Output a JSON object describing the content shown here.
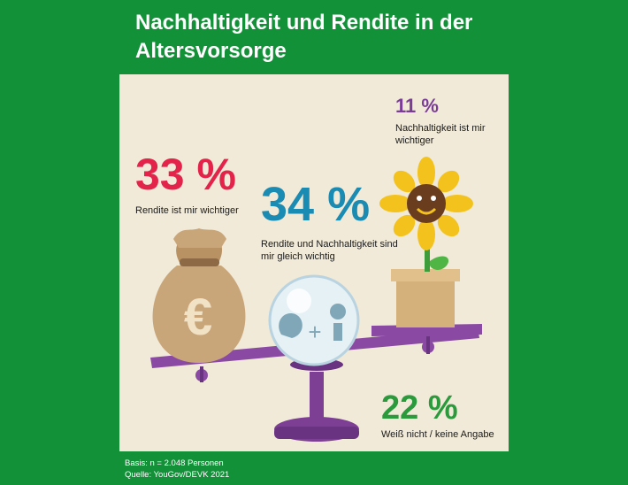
{
  "title": "Nachhaltigkeit und Rendite in der Altersvorsorge",
  "chart_data": {
    "type": "pie",
    "title": "Nachhaltigkeit und Rendite in der Altersvorsorge",
    "categories": [
      "Rendite ist mir wichtiger",
      "Rendite und Nachhaltigkeit sind mir gleich wichtig",
      "Nachhaltigkeit ist mir wichtiger",
      "Weiß nicht / keine Angabe"
    ],
    "values": [
      33,
      34,
      11,
      22
    ],
    "value_labels": [
      "33 %",
      "34 %",
      "11 %",
      "22 %"
    ],
    "colors": [
      "#e3234a",
      "#1a8bb3",
      "#7a3d96",
      "#2a9a3c"
    ]
  },
  "footer": {
    "basis": "Basis: n = 2.048 Personen",
    "source": "Quelle: YouGov/DEVK 2021"
  },
  "icons": [
    "money-bag-euro-icon",
    "crystal-ball-icon",
    "sunflower-pot-icon",
    "seesaw-scale-icon"
  ]
}
